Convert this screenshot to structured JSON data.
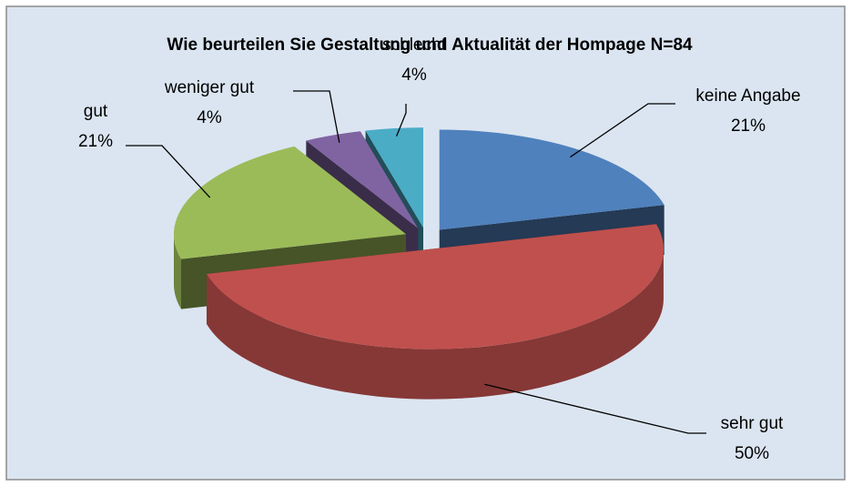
{
  "chart_data": {
    "type": "pie",
    "title": "Wie beurteilen Sie Gestaltung und Aktualität der Hompage N=84",
    "categories": [
      "keine Angabe",
      "sehr gut",
      "gut",
      "weniger gut",
      "schlecht"
    ],
    "values": [
      21,
      50,
      21,
      4,
      4
    ],
    "value_labels": [
      "21%",
      "50%",
      "21%",
      "4%",
      "4%"
    ],
    "colors": [
      "#4f81bd",
      "#c0504d",
      "#9bbb59",
      "#8064a2",
      "#4bacc6"
    ]
  }
}
